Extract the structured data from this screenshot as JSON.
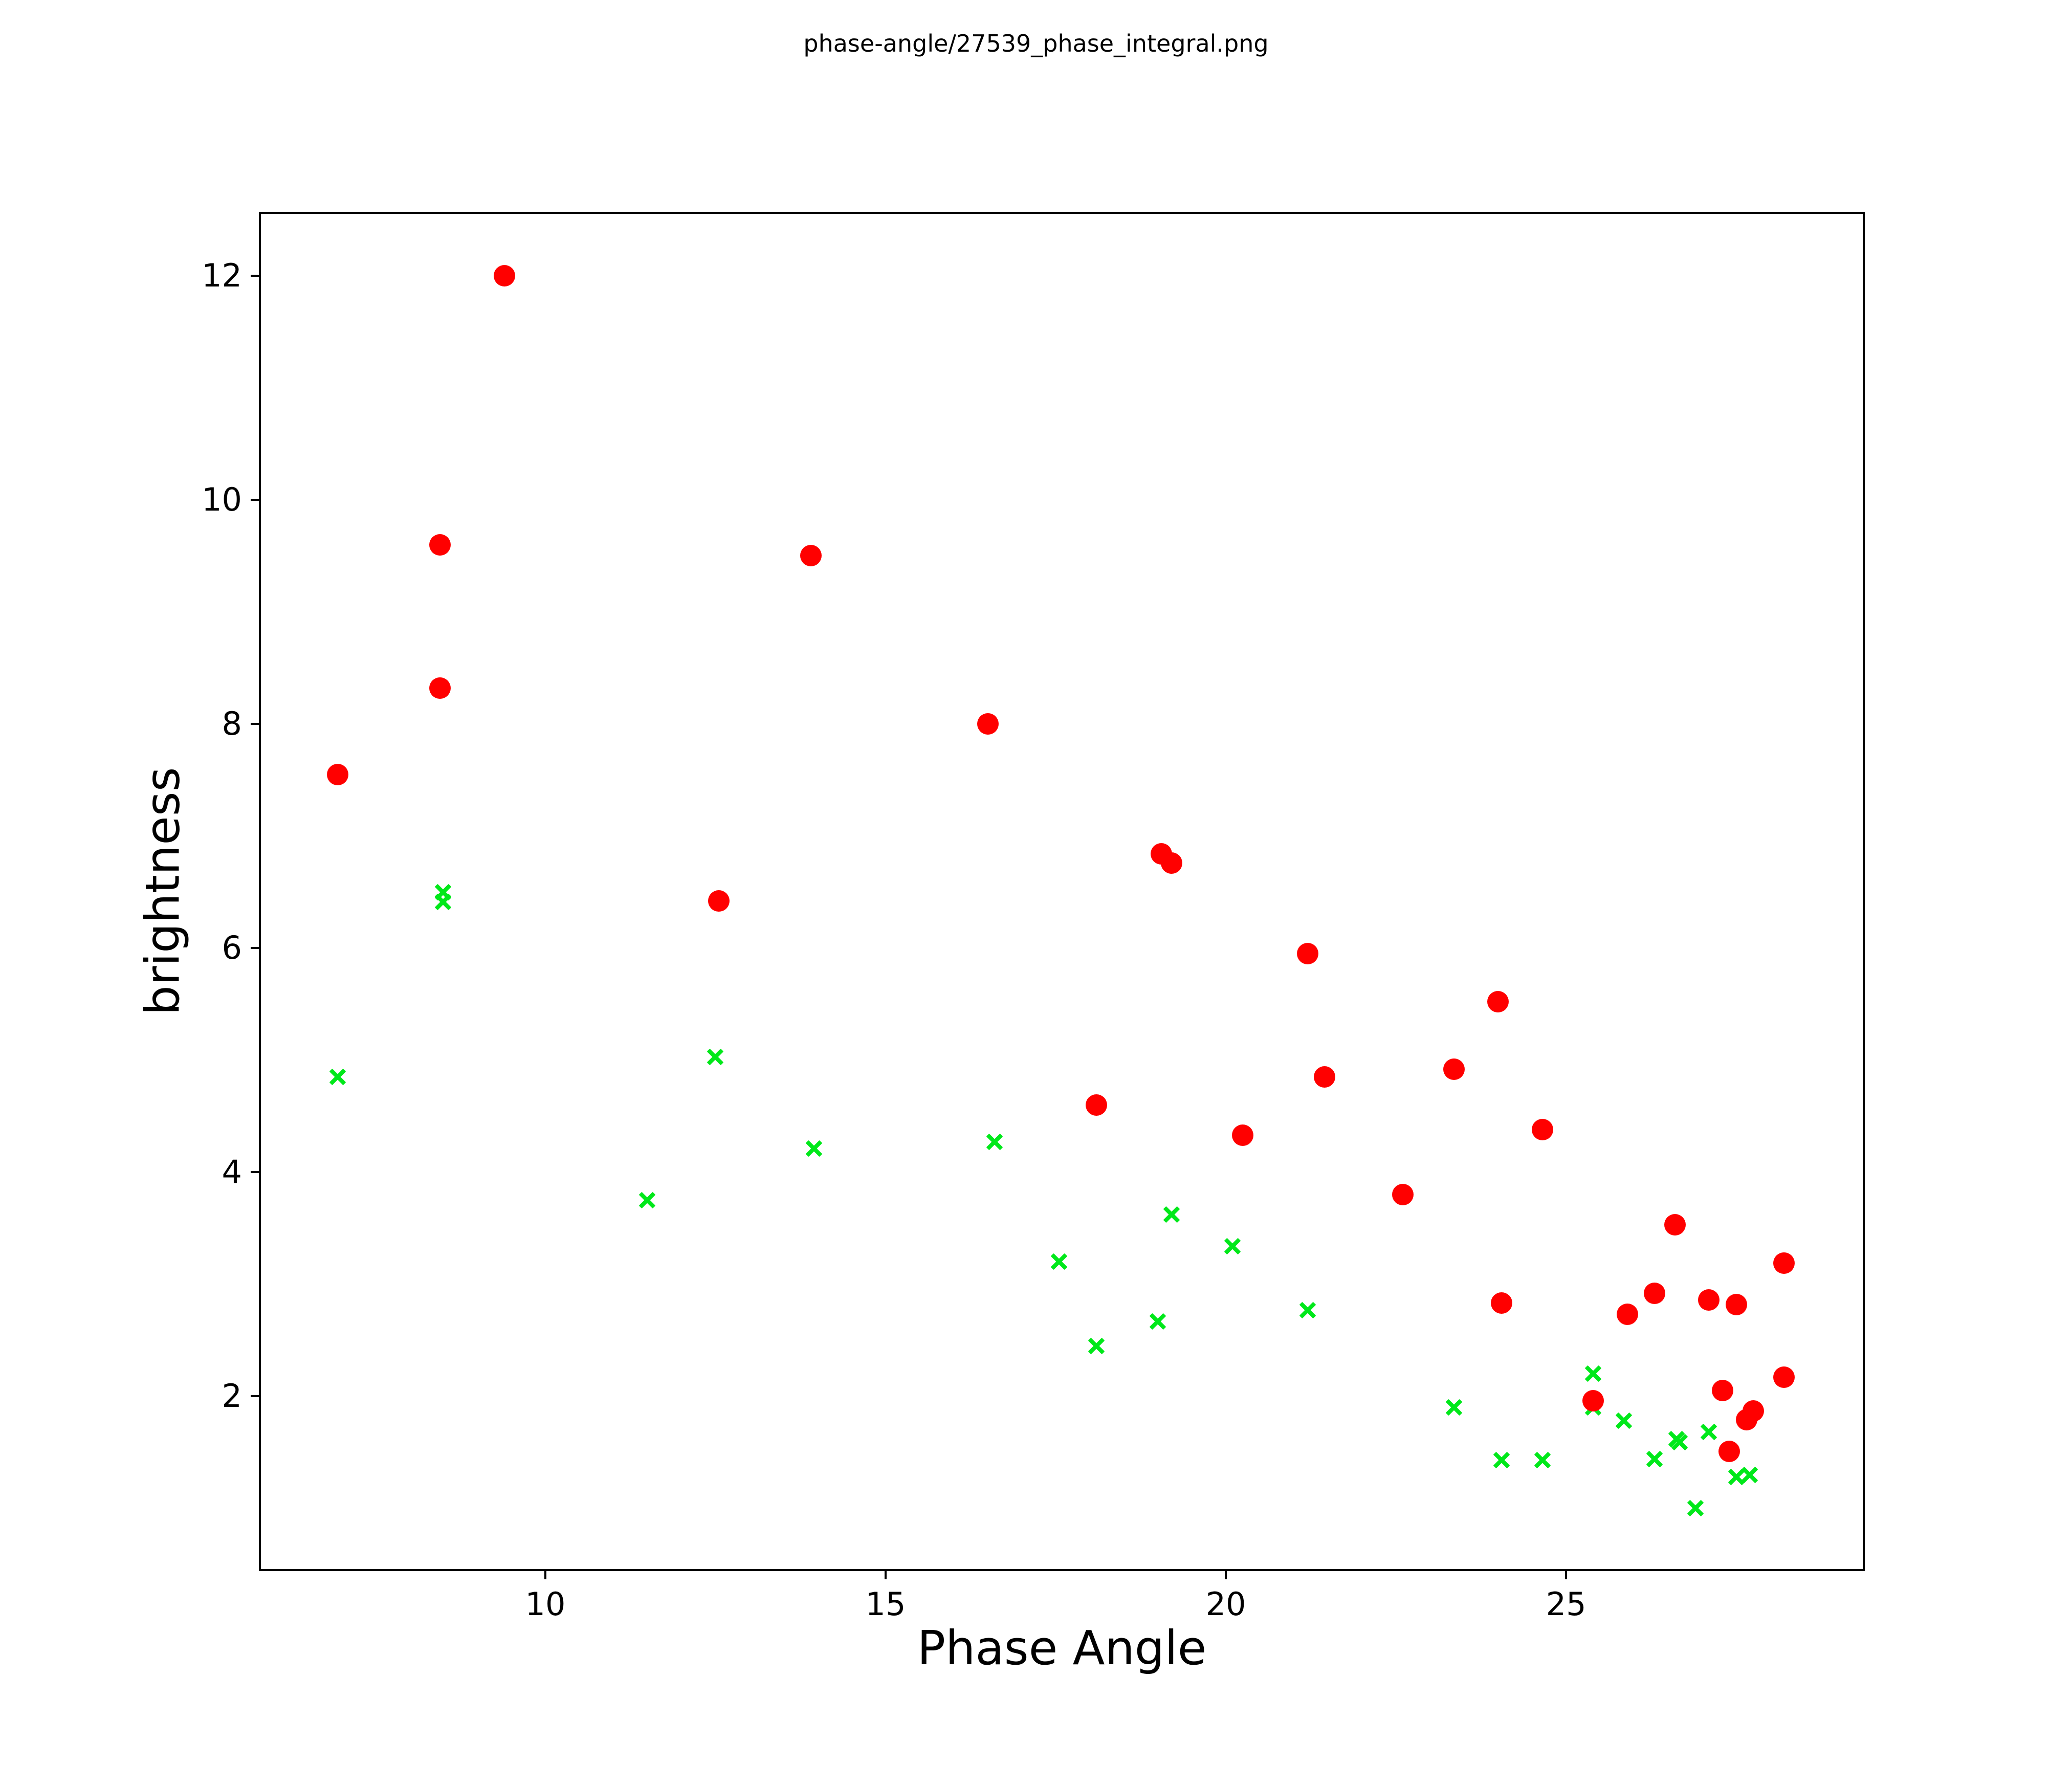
{
  "title": "phase-angle/27539_phase_integral.png",
  "chart_data": {
    "type": "scatter",
    "title": "phase-angle/27539_phase_integral.png",
    "xlabel": "Phase Angle",
    "ylabel": "brightness",
    "xlim": [
      5.79,
      29.39
    ],
    "ylim": [
      0.44,
      12.57
    ],
    "x_ticks": [
      10,
      15,
      20,
      25
    ],
    "y_ticks": [
      2,
      4,
      6,
      8,
      10,
      12
    ],
    "grid": false,
    "legend_position": "none",
    "series": [
      {
        "name": "red-circles",
        "marker": "circle",
        "color": "#ff0000",
        "points": [
          [
            9.4,
            12.0
          ],
          [
            8.45,
            9.6
          ],
          [
            13.9,
            9.5
          ],
          [
            8.45,
            8.32
          ],
          [
            16.5,
            8.0
          ],
          [
            6.95,
            7.55
          ],
          [
            19.05,
            6.84
          ],
          [
            19.2,
            6.76
          ],
          [
            12.55,
            6.42
          ],
          [
            21.2,
            5.95
          ],
          [
            24.0,
            5.52
          ],
          [
            23.35,
            4.92
          ],
          [
            21.45,
            4.85
          ],
          [
            18.1,
            4.6
          ],
          [
            24.65,
            4.38
          ],
          [
            20.25,
            4.33
          ],
          [
            22.6,
            3.8
          ],
          [
            26.6,
            3.53
          ],
          [
            28.2,
            3.19
          ],
          [
            26.3,
            2.92
          ],
          [
            27.1,
            2.86
          ],
          [
            27.5,
            2.82
          ],
          [
            24.05,
            2.83
          ],
          [
            25.9,
            2.73
          ],
          [
            28.2,
            2.17
          ],
          [
            27.3,
            2.05
          ],
          [
            25.4,
            1.96
          ],
          [
            27.75,
            1.87
          ],
          [
            27.65,
            1.79
          ],
          [
            27.4,
            1.51
          ]
        ]
      },
      {
        "name": "green-crosses",
        "marker": "x",
        "color": "#00e81a",
        "points": [
          [
            8.5,
            6.5
          ],
          [
            8.5,
            6.41
          ],
          [
            12.5,
            5.03
          ],
          [
            6.95,
            4.85
          ],
          [
            13.95,
            4.21
          ],
          [
            16.6,
            4.27
          ],
          [
            11.5,
            3.75
          ],
          [
            19.2,
            3.62
          ],
          [
            17.55,
            3.2
          ],
          [
            20.1,
            3.34
          ],
          [
            18.1,
            2.45
          ],
          [
            19.0,
            2.67
          ],
          [
            21.2,
            2.77
          ],
          [
            23.35,
            1.9
          ],
          [
            25.4,
            2.2
          ],
          [
            25.4,
            1.9
          ],
          [
            25.85,
            1.78
          ],
          [
            24.05,
            1.43
          ],
          [
            24.65,
            1.43
          ],
          [
            26.3,
            1.44
          ],
          [
            26.62,
            1.62
          ],
          [
            26.67,
            1.59
          ],
          [
            27.1,
            1.68
          ],
          [
            27.5,
            1.28
          ],
          [
            27.7,
            1.3
          ],
          [
            26.9,
            1.0
          ]
        ]
      }
    ]
  }
}
